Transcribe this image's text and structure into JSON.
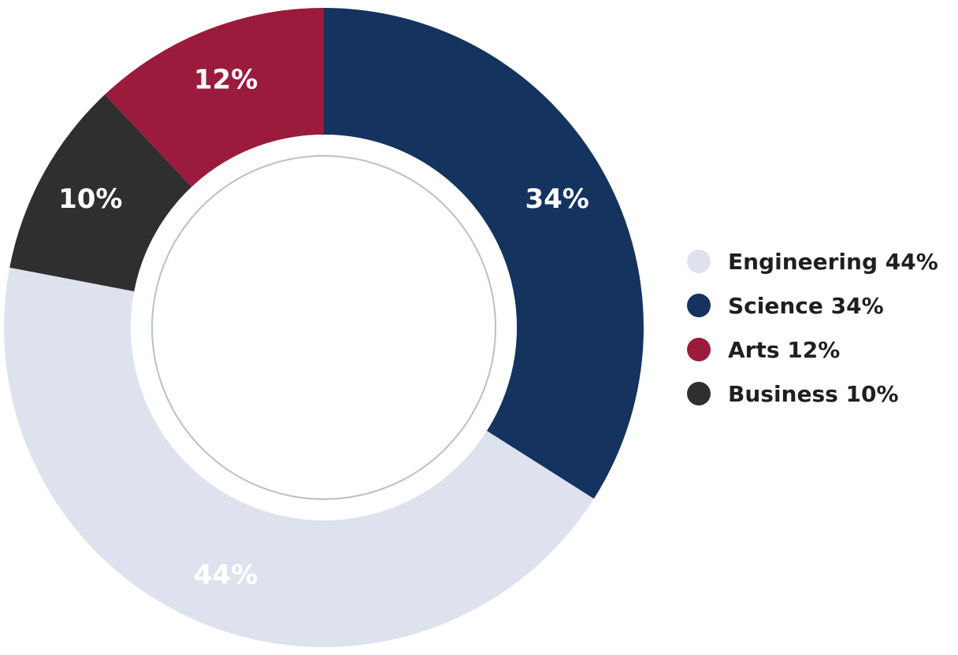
{
  "chart_data": {
    "type": "pie",
    "variant": "donut",
    "title": "",
    "categories": [
      "Engineering",
      "Science",
      "Arts",
      "Business"
    ],
    "values": [
      44,
      34,
      12,
      10
    ],
    "value_unit": "%",
    "slice_labels": [
      "44%",
      "34%",
      "12%",
      "10%"
    ],
    "colors": [
      "#DDE2EE",
      "#14335E",
      "#9B1B3C",
      "#2F2F2F"
    ],
    "legend_labels": [
      "Engineering 44%",
      "Science 34%",
      "Arts 12%",
      "Business 10%"
    ],
    "legend_position": "right",
    "grid": false
  }
}
